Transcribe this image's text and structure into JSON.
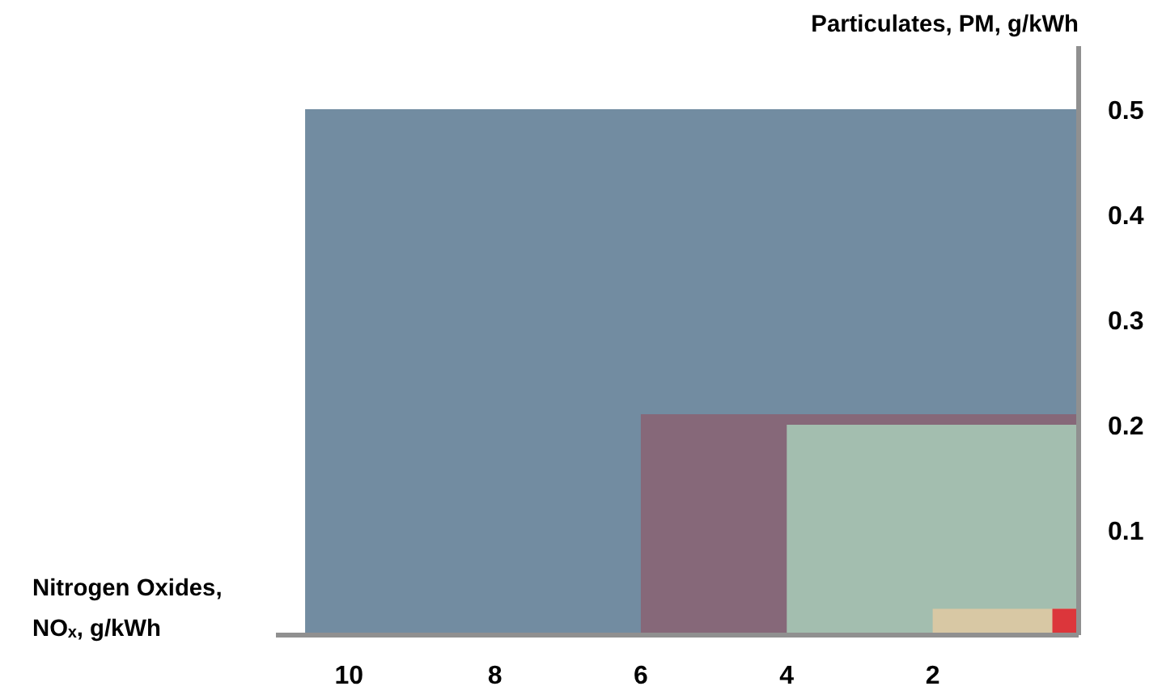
{
  "chart_data": {
    "type": "area",
    "xlabel": "Nitrogen Oxides,\nNOₓ, g/kWh",
    "ylabel": "Particulates, PM, g/kWh",
    "xlim": [
      11,
      0
    ],
    "ylim": [
      0,
      0.56
    ],
    "xticks": [
      10,
      8,
      6,
      4,
      2
    ],
    "yticks": [
      0.1,
      0.2,
      0.3,
      0.4,
      0.5
    ],
    "grid": false,
    "series": [
      {
        "color": "#728ca1",
        "x": [
          0,
          10.6
        ],
        "values": [
          0.5,
          0.5
        ]
      },
      {
        "color": "#866879",
        "x": [
          0,
          6.0
        ],
        "values": [
          0.21,
          0.21
        ]
      },
      {
        "color": "#a3beaf",
        "x": [
          0,
          4.0
        ],
        "values": [
          0.2,
          0.2
        ]
      },
      {
        "color": "#d8c8a4",
        "x": [
          0,
          2.0
        ],
        "values": [
          0.025,
          0.025
        ]
      },
      {
        "color": "#dc363b",
        "x": [
          0,
          0.36
        ],
        "values": [
          0.025,
          0.025
        ]
      }
    ]
  }
}
